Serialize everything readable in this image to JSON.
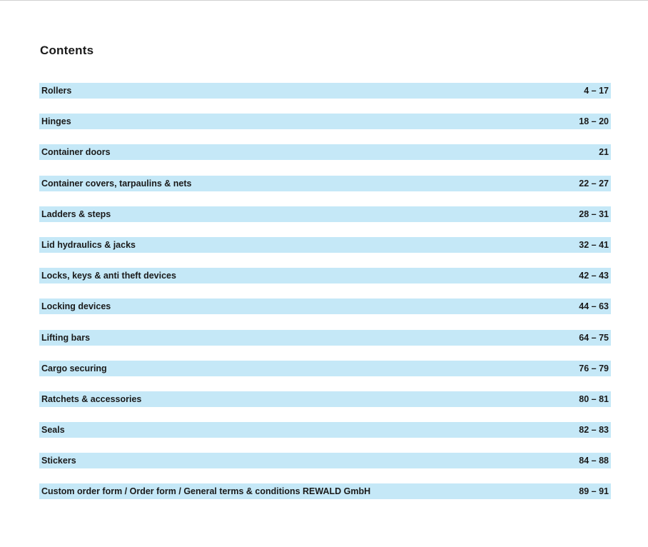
{
  "document": {
    "title": "Contents"
  },
  "toc": [
    {
      "label": "Rollers",
      "pages": "4 – 17"
    },
    {
      "label": "Hinges",
      "pages": "18 – 20"
    },
    {
      "label": "Container doors",
      "pages": "21"
    },
    {
      "label": " Container covers, tarpaulins & nets",
      "pages": "22 – 27"
    },
    {
      "label": "Ladders & steps",
      "pages": "28 – 31"
    },
    {
      "label": " Lid hydraulics & jacks",
      "pages": "32 – 41"
    },
    {
      "label": "Locks, keys & anti theft devices",
      "pages": "42 – 43"
    },
    {
      "label": "Locking devices",
      "pages": "44 – 63"
    },
    {
      "label": "Lifting bars",
      "pages": "64 – 75"
    },
    {
      "label": "Cargo securing",
      "pages": "76 – 79"
    },
    {
      "label": "Ratchets & accessories",
      "pages": "80 – 81"
    },
    {
      "label": "Seals",
      "pages": "82 – 83"
    },
    {
      "label": "Stickers",
      "pages": "84 – 88"
    },
    {
      "label": "Custom order form / Order form / General terms & conditions REWALD GmbH",
      "pages": "89 – 91"
    }
  ],
  "colors": {
    "row_background": "#c5e8f7",
    "text": "#1a1a1a"
  }
}
